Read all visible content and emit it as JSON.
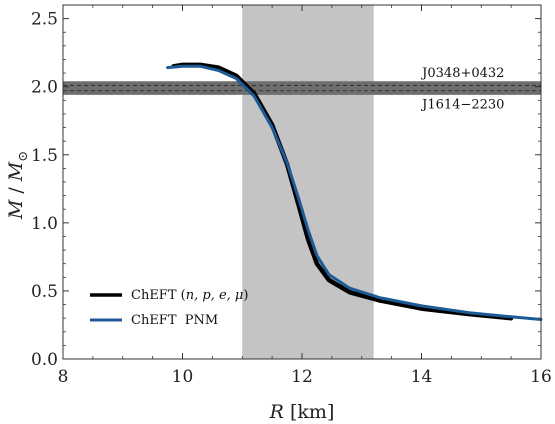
{
  "chart_data": {
    "type": "line",
    "xlabel_var": "R",
    "xlabel_unit": "[km]",
    "ylabel_var": "M",
    "ylabel_sep": " / ",
    "ylabel_var2": "M",
    "ylabel_sub": "⊙",
    "xlim": [
      8,
      16
    ],
    "ylim": [
      0,
      2.6
    ],
    "xticks": [
      8,
      10,
      12,
      14,
      16
    ],
    "xtick_labels": [
      "8",
      "10",
      "12",
      "14",
      "16"
    ],
    "yticks": [
      0.0,
      0.5,
      1.0,
      1.5,
      2.0,
      2.5
    ],
    "ytick_labels": [
      "0.0",
      "0.5",
      "1.0",
      "1.5",
      "2.0",
      "2.5"
    ],
    "grid": false,
    "legend_position": "bottom-left",
    "vertical_band": {
      "x": [
        11.0,
        13.2
      ],
      "color": "#c4c4c4"
    },
    "horizontal_band": {
      "y": [
        1.94,
        2.04
      ],
      "color": "#6e6e6e",
      "dashed_lines": [
        1.97,
        2.01
      ]
    },
    "annotations": [
      {
        "text": "J0348+0432",
        "x": 14.7,
        "y": 2.07
      },
      {
        "text": "J1614−2230",
        "x": 14.7,
        "y": 1.84
      }
    ],
    "series": [
      {
        "name": "ChEFT (",
        "name_math": "n, p, e, μ",
        "name_close": ")",
        "color": "#000000",
        "width": 4.5,
        "x": [
          9.85,
          10.0,
          10.3,
          10.6,
          10.9,
          11.2,
          11.5,
          11.75,
          11.95,
          12.1,
          12.25,
          12.45,
          12.8,
          13.3,
          14.0,
          14.8,
          15.5
        ],
        "y": [
          2.15,
          2.16,
          2.16,
          2.14,
          2.08,
          1.95,
          1.72,
          1.43,
          1.12,
          0.88,
          0.7,
          0.58,
          0.49,
          0.43,
          0.37,
          0.33,
          0.3
        ]
      },
      {
        "name": "ChEFT  PNM",
        "color": "#1c5b96",
        "width": 3,
        "x": [
          9.75,
          10.0,
          10.3,
          10.6,
          10.9,
          11.2,
          11.5,
          11.75,
          11.95,
          12.1,
          12.25,
          12.45,
          12.8,
          13.3,
          14.0,
          14.8,
          15.5,
          16.0
        ],
        "y": [
          2.14,
          2.15,
          2.15,
          2.12,
          2.06,
          1.93,
          1.7,
          1.44,
          1.17,
          0.95,
          0.76,
          0.62,
          0.52,
          0.45,
          0.39,
          0.34,
          0.31,
          0.29
        ]
      }
    ]
  }
}
